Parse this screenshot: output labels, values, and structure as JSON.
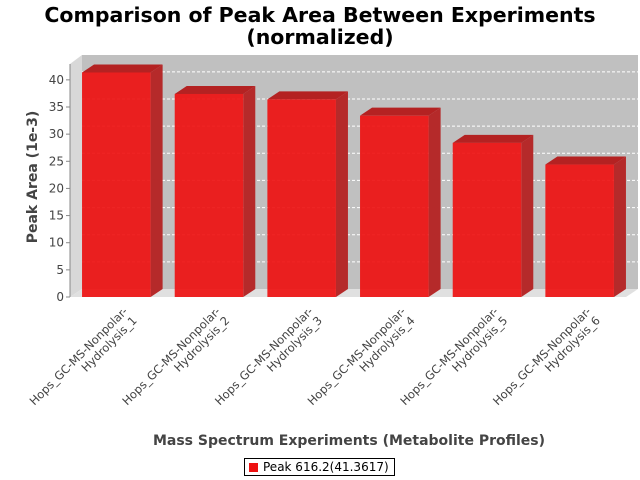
{
  "chart_data": {
    "type": "bar",
    "title": "Comparison of Peak Area Between Experiments",
    "subtitle": "(normalized)",
    "xlabel": "Mass Spectrum Experiments (Metabolite Profiles)",
    "ylabel": "Peak Area (1e-3)",
    "categories": [
      "Hops_GC-MS-Nonpolar-Hydrolysis_1",
      "Hops_GC-MS-Nonpolar-Hydrolysis_2",
      "Hops_GC-MS-Nonpolar-Hydrolysis_3",
      "Hops_GC-MS-Nonpolar-Hydrolysis_4",
      "Hops_GC-MS-Nonpolar-Hydrolysis_5",
      "Hops_GC-MS-Nonpolar-Hydrolysis_6"
    ],
    "category_label_lines": [
      [
        "Hops_GC-MS-Nonpolar-",
        "Hydrolysis_1"
      ],
      [
        "Hops_GC-MS-Nonpolar-",
        "Hydrolysis_2"
      ],
      [
        "Hops_GC-MS-Nonpolar-",
        "Hydrolysis_3"
      ],
      [
        "Hops_GC-MS-Nonpolar-",
        "Hydrolysis_4"
      ],
      [
        "Hops_GC-MS-Nonpolar-",
        "Hydrolysis_5"
      ],
      [
        "Hops_GC-MS-Nonpolar-",
        "Hydrolysis_6"
      ]
    ],
    "series": [
      {
        "name": "Peak 616.2(41.3617)",
        "values": [
          41.36,
          37.4,
          36.4,
          33.4,
          28.4,
          24.4
        ],
        "color": "#ee1111"
      }
    ],
    "ylim": [
      0,
      42
    ],
    "yticks": [
      0,
      5,
      10,
      15,
      20,
      25,
      30,
      35,
      40
    ],
    "grid": true,
    "legend": "bottom-center",
    "plot_background": "#c0c0c0",
    "three_d": true
  }
}
